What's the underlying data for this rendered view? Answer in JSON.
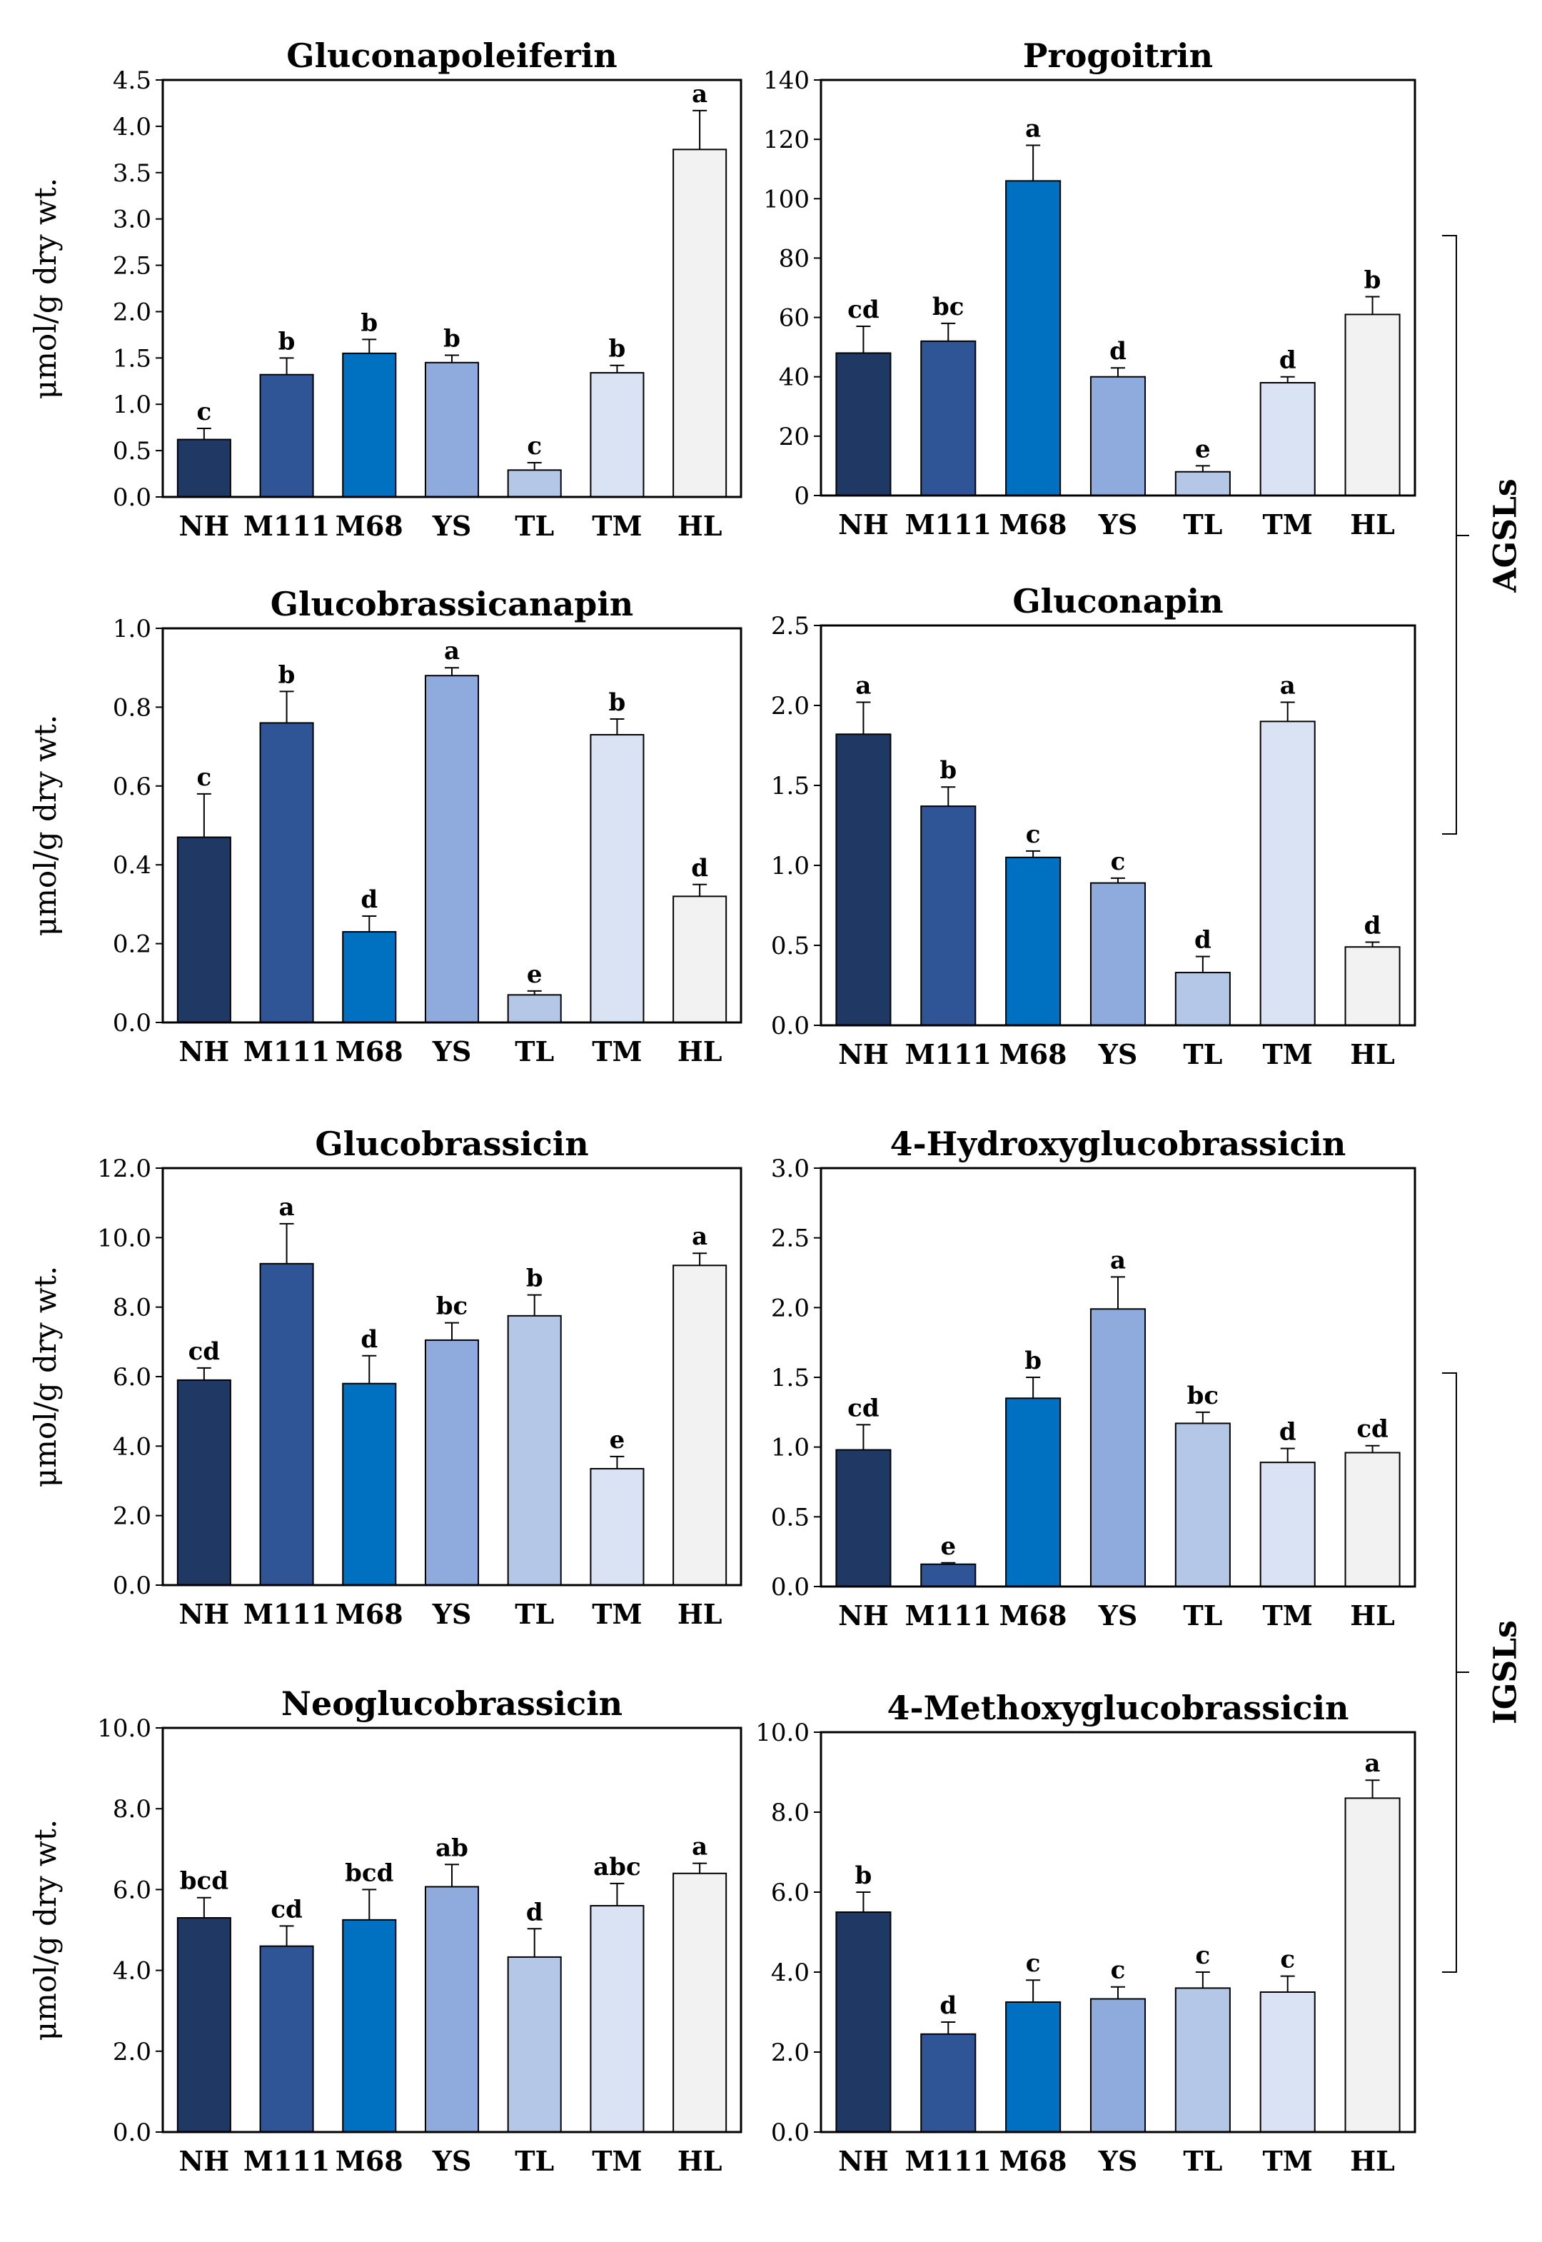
{
  "figure": {
    "group_labels": {
      "agsl": "AGSLs",
      "igsl": "IGSLs"
    }
  },
  "colors": {
    "NH": "#1f3864",
    "M111": "#2f5597",
    "M68": "#0070c0",
    "YS": "#8faadc",
    "TL": "#b4c7e7",
    "TM": "#dae3f3",
    "HL": "#f2f2f2",
    "error": "#000000"
  },
  "chart_data": [
    {
      "type": "bar",
      "title": "Gluconapoleiferin",
      "ylabel": "μmol/g dry wt.",
      "categories": [
        "NH",
        "M111",
        "M68",
        "YS",
        "TL",
        "TM",
        "HL"
      ],
      "values": [
        0.62,
        1.32,
        1.55,
        1.45,
        0.29,
        1.34,
        3.75
      ],
      "errors": [
        0.12,
        0.18,
        0.15,
        0.08,
        0.08,
        0.08,
        0.42
      ],
      "letters": [
        "c",
        "b",
        "b",
        "b",
        "c",
        "b",
        "a"
      ],
      "ylim": [
        0,
        4.5
      ],
      "yticks": [
        "0.0",
        "0.5",
        "1.0",
        "1.5",
        "2.0",
        "2.5",
        "3.0",
        "3.5",
        "4.0",
        "4.5"
      ]
    },
    {
      "type": "bar",
      "title": "Progoitrin",
      "ylabel": "",
      "categories": [
        "NH",
        "M111",
        "M68",
        "YS",
        "TL",
        "TM",
        "HL"
      ],
      "values": [
        48,
        52,
        106,
        40,
        8,
        38,
        61
      ],
      "errors": [
        9,
        6,
        12,
        3,
        2,
        2,
        6
      ],
      "letters": [
        "cd",
        "bc",
        "a",
        "d",
        "e",
        "d",
        "b"
      ],
      "ylim": [
        0,
        140
      ],
      "yticks": [
        "0",
        "20",
        "40",
        "60",
        "80",
        "100",
        "120",
        "140"
      ]
    },
    {
      "type": "bar",
      "title": "Glucobrassicanapin",
      "ylabel": "μmol/g dry wt.",
      "categories": [
        "NH",
        "M111",
        "M68",
        "YS",
        "TL",
        "TM",
        "HL"
      ],
      "values": [
        0.47,
        0.76,
        0.23,
        0.88,
        0.07,
        0.73,
        0.32
      ],
      "errors": [
        0.11,
        0.08,
        0.04,
        0.02,
        0.01,
        0.04,
        0.03
      ],
      "letters": [
        "c",
        "b",
        "d",
        "a",
        "e",
        "b",
        "d"
      ],
      "ylim": [
        0,
        1.0
      ],
      "yticks": [
        "0.0",
        "0.2",
        "0.4",
        "0.6",
        "0.8",
        "1.0"
      ]
    },
    {
      "type": "bar",
      "title": "Gluconapin",
      "ylabel": "",
      "categories": [
        "NH",
        "M111",
        "M68",
        "YS",
        "TL",
        "TM",
        "HL"
      ],
      "values": [
        1.82,
        1.37,
        1.05,
        0.89,
        0.33,
        1.9,
        0.49
      ],
      "errors": [
        0.2,
        0.12,
        0.04,
        0.03,
        0.1,
        0.12,
        0.03
      ],
      "letters": [
        "a",
        "b",
        "c",
        "c",
        "d",
        "a",
        "d"
      ],
      "ylim": [
        0,
        2.5
      ],
      "yticks": [
        "0.0",
        "0.5",
        "1.0",
        "1.5",
        "2.0",
        "2.5"
      ]
    },
    {
      "type": "bar",
      "title": "Glucobrassicin",
      "ylabel": "μmol/g dry wt.",
      "categories": [
        "NH",
        "M111",
        "M68",
        "YS",
        "TL",
        "TM",
        "HL"
      ],
      "values": [
        5.9,
        9.25,
        5.8,
        7.05,
        7.75,
        3.35,
        9.2
      ],
      "errors": [
        0.35,
        1.15,
        0.8,
        0.5,
        0.6,
        0.35,
        0.35
      ],
      "letters": [
        "cd",
        "a",
        "d",
        "bc",
        "b",
        "e",
        "a"
      ],
      "ylim": [
        0,
        12.0
      ],
      "yticks": [
        "0.0",
        "2.0",
        "4.0",
        "6.0",
        "8.0",
        "10.0",
        "12.0"
      ]
    },
    {
      "type": "bar",
      "title": "4-Hydroxyglucobrassicin",
      "ylabel": "",
      "categories": [
        "NH",
        "M111",
        "M68",
        "YS",
        "TL",
        "TM",
        "HL"
      ],
      "values": [
        0.98,
        0.16,
        1.35,
        1.99,
        1.17,
        0.89,
        0.96
      ],
      "errors": [
        0.18,
        0.01,
        0.15,
        0.23,
        0.08,
        0.1,
        0.05
      ],
      "letters": [
        "cd",
        "e",
        "b",
        "a",
        "bc",
        "d",
        "cd"
      ],
      "ylim": [
        0,
        3.0
      ],
      "yticks": [
        "0.0",
        "0.5",
        "1.0",
        "1.5",
        "2.0",
        "2.5",
        "3.0"
      ]
    },
    {
      "type": "bar",
      "title": "Neoglucobrassicin",
      "ylabel": "μmol/g dry wt.",
      "categories": [
        "NH",
        "M111",
        "M68",
        "YS",
        "TL",
        "TM",
        "HL"
      ],
      "values": [
        5.3,
        4.6,
        5.25,
        6.07,
        4.33,
        5.6,
        6.4
      ],
      "errors": [
        0.5,
        0.5,
        0.75,
        0.55,
        0.7,
        0.55,
        0.25
      ],
      "letters": [
        "bcd",
        "cd",
        "bcd",
        "ab",
        "d",
        "abc",
        "a"
      ],
      "ylim": [
        0,
        10.0
      ],
      "yticks": [
        "0.0",
        "2.0",
        "4.0",
        "6.0",
        "8.0",
        "10.0"
      ]
    },
    {
      "type": "bar",
      "title": "4-Methoxyglucobrassicin",
      "ylabel": "",
      "categories": [
        "NH",
        "M111",
        "M68",
        "YS",
        "TL",
        "TM",
        "HL"
      ],
      "values": [
        5.5,
        2.45,
        3.25,
        3.33,
        3.6,
        3.5,
        8.35
      ],
      "errors": [
        0.5,
        0.3,
        0.55,
        0.3,
        0.4,
        0.4,
        0.45
      ],
      "letters": [
        "b",
        "d",
        "c",
        "c",
        "c",
        "c",
        "a"
      ],
      "ylim": [
        0,
        10.0
      ],
      "yticks": [
        "0.0",
        "2.0",
        "4.0",
        "6.0",
        "8.0",
        "10.0"
      ]
    }
  ]
}
